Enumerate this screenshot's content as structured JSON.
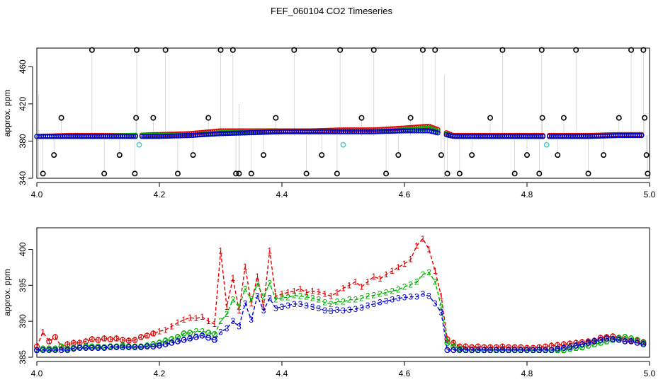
{
  "figure": {
    "title": "FEF_060104  CO2 Timeseries"
  },
  "colors": {
    "black": "#000000",
    "red": "#e00000",
    "green": "#00b000",
    "blue": "#0000cc",
    "cyan": "#33cccc",
    "gray": "#999999"
  },
  "chart_data": [
    {
      "type": "scatter",
      "ylabel": "approx. ppm",
      "xlim": [
        4.0,
        5.0
      ],
      "ylim": [
        340,
        480
      ],
      "xticks": [
        "4.0",
        "4.2",
        "4.4",
        "4.6",
        "4.8",
        "5.0"
      ],
      "yticks": [
        "340",
        "380",
        "420",
        "460"
      ],
      "xtick_values": [
        4.0,
        4.2,
        4.4,
        4.6,
        4.8,
        5.0
      ],
      "ytick_values": [
        340,
        380,
        420,
        460
      ],
      "grid": false,
      "series": [
        {
          "values": [
            [
              4.0,
              385
            ],
            [
              4.05,
              386
            ],
            [
              4.1,
              386
            ],
            [
              4.15,
              386
            ],
            [
              4.2,
              387
            ],
            [
              4.25,
              388
            ],
            [
              4.3,
              391
            ],
            [
              4.35,
              391
            ],
            [
              4.4,
              391
            ],
            [
              4.45,
              391
            ],
            [
              4.5,
              392
            ],
            [
              4.55,
              392
            ],
            [
              4.6,
              394
            ],
            [
              4.64,
              396
            ],
            [
              4.68,
              386
            ],
            [
              4.75,
              386
            ],
            [
              4.8,
              386
            ],
            [
              4.85,
              386
            ],
            [
              4.9,
              386
            ],
            [
              4.95,
              387
            ],
            [
              4.99,
              387
            ]
          ]
        },
        {
          "values": [
            [
              4.0,
              385
            ],
            [
              4.05,
              385
            ],
            [
              4.1,
              385
            ],
            [
              4.15,
              386
            ],
            [
              4.2,
              386
            ],
            [
              4.25,
              386
            ],
            [
              4.3,
              389
            ],
            [
              4.35,
              390
            ],
            [
              4.4,
              390
            ],
            [
              4.45,
              390
            ],
            [
              4.5,
              390
            ],
            [
              4.55,
              390
            ],
            [
              4.6,
              392
            ],
            [
              4.64,
              394
            ],
            [
              4.68,
              385
            ],
            [
              4.75,
              385
            ],
            [
              4.8,
              385
            ],
            [
              4.85,
              385
            ],
            [
              4.9,
              385
            ],
            [
              4.95,
              386
            ],
            [
              4.99,
              386
            ]
          ]
        },
        {
          "values": [
            [
              4.0,
              385
            ],
            [
              4.05,
              385
            ],
            [
              4.1,
              385
            ],
            [
              4.15,
              385
            ],
            [
              4.2,
              385
            ],
            [
              4.25,
              386
            ],
            [
              4.3,
              388
            ],
            [
              4.35,
              389
            ],
            [
              4.4,
              390
            ],
            [
              4.45,
              390
            ],
            [
              4.5,
              390
            ],
            [
              4.55,
              390
            ],
            [
              4.6,
              391
            ],
            [
              4.64,
              391
            ],
            [
              4.68,
              385
            ],
            [
              4.75,
              385
            ],
            [
              4.8,
              385
            ],
            [
              4.85,
              385
            ],
            [
              4.9,
              385
            ],
            [
              4.95,
              386
            ],
            [
              4.99,
              386
            ]
          ]
        },
        {
          "values": [
            [
              4.01,
              345
            ],
            [
              4.028,
              365
            ],
            [
              4.04,
              405
            ],
            [
              4.09,
              478
            ],
            [
              4.11,
              345
            ],
            [
              4.135,
              365
            ],
            [
              4.16,
              345
            ],
            [
              4.162,
              405
            ],
            [
              4.163,
              478
            ],
            [
              4.19,
              405
            ],
            [
              4.21,
              478
            ],
            [
              4.23,
              345
            ],
            [
              4.255,
              365
            ],
            [
              4.28,
              405
            ],
            [
              4.3,
              478
            ],
            [
              4.32,
              478
            ],
            [
              4.325,
              345
            ],
            [
              4.33,
              345
            ],
            [
              4.35,
              345
            ],
            [
              4.37,
              365
            ],
            [
              4.39,
              405
            ],
            [
              4.42,
              478
            ],
            [
              4.44,
              345
            ],
            [
              4.465,
              365
            ],
            [
              4.49,
              345
            ],
            [
              4.495,
              478
            ],
            [
              4.53,
              405
            ],
            [
              4.55,
              478
            ],
            [
              4.57,
              345
            ],
            [
              4.59,
              365
            ],
            [
              4.61,
              405
            ],
            [
              4.63,
              478
            ],
            [
              4.65,
              478
            ],
            [
              4.66,
              365
            ],
            [
              4.67,
              345
            ],
            [
              4.69,
              345
            ],
            [
              4.71,
              365
            ],
            [
              4.74,
              405
            ],
            [
              4.76,
              478
            ],
            [
              4.78,
              345
            ],
            [
              4.8,
              365
            ],
            [
              4.82,
              345
            ],
            [
              4.824,
              478
            ],
            [
              4.825,
              405
            ],
            [
              4.85,
              365
            ],
            [
              4.86,
              405
            ],
            [
              4.88,
              478
            ],
            [
              4.9,
              345
            ],
            [
              4.925,
              365
            ],
            [
              4.95,
              405
            ],
            [
              4.97,
              478
            ],
            [
              4.99,
              478
            ],
            [
              4.992,
              405
            ],
            [
              4.995,
              365
            ],
            [
              4.997,
              345
            ]
          ]
        },
        {
          "values": [
            [
              4.167,
              376
            ],
            [
              4.5,
              376
            ],
            [
              4.832,
              376
            ]
          ]
        }
      ]
    },
    {
      "type": "line",
      "ylabel": "approx. ppm",
      "xlim": [
        4.0,
        5.0
      ],
      "ylim": [
        385,
        403
      ],
      "xticks": [
        "4.0",
        "4.2",
        "4.4",
        "4.6",
        "4.8",
        "5.0"
      ],
      "yticks": [
        "385",
        "390",
        "395",
        "400"
      ],
      "xtick_values": [
        4.0,
        4.2,
        4.4,
        4.6,
        4.8,
        5.0
      ],
      "ytick_values": [
        385,
        390,
        395,
        400
      ],
      "grid": false,
      "x": [
        4.0,
        4.01,
        4.02,
        4.03,
        4.04,
        4.05,
        4.06,
        4.07,
        4.08,
        4.09,
        4.1,
        4.11,
        4.12,
        4.13,
        4.14,
        4.15,
        4.16,
        4.17,
        4.18,
        4.19,
        4.2,
        4.21,
        4.22,
        4.23,
        4.24,
        4.25,
        4.26,
        4.27,
        4.28,
        4.29,
        4.3,
        4.31,
        4.32,
        4.33,
        4.34,
        4.35,
        4.36,
        4.37,
        4.38,
        4.39,
        4.4,
        4.41,
        4.42,
        4.43,
        4.44,
        4.45,
        4.46,
        4.47,
        4.48,
        4.49,
        4.5,
        4.51,
        4.52,
        4.53,
        4.54,
        4.55,
        4.56,
        4.57,
        4.58,
        4.59,
        4.6,
        4.61,
        4.62,
        4.63,
        4.64,
        4.65,
        4.66,
        4.67,
        4.68,
        4.69,
        4.7,
        4.71,
        4.72,
        4.73,
        4.74,
        4.75,
        4.76,
        4.77,
        4.78,
        4.79,
        4.8,
        4.81,
        4.82,
        4.83,
        4.84,
        4.85,
        4.86,
        4.87,
        4.88,
        4.89,
        4.9,
        4.91,
        4.92,
        4.93,
        4.94,
        4.95,
        4.96,
        4.97,
        4.98,
        4.99
      ],
      "series": [
        {
          "label": "1",
          "values": [
            386.5,
            388.5,
            387.2,
            387.8,
            386.5,
            386.8,
            387,
            387,
            387.2,
            387.5,
            387.4,
            387.6,
            387.5,
            387.6,
            387.4,
            387.3,
            387.4,
            387.8,
            388,
            388.3,
            388.6,
            388.8,
            389.3,
            389.8,
            390.2,
            390.5,
            390.4,
            390.6,
            390,
            389.6,
            399.8,
            392,
            396,
            391.5,
            397.6,
            392.5,
            396.2,
            392,
            399.8,
            393.5,
            393.8,
            394,
            394.2,
            394.5,
            394,
            394.2,
            394.1,
            393.8,
            393.5,
            394,
            394.6,
            395,
            395.5,
            394.8,
            395.5,
            396.2,
            395.9,
            396.5,
            397,
            397.5,
            398,
            398.6,
            400.5,
            401.5,
            400,
            397,
            393.5,
            387.5,
            387,
            386.5,
            386.5,
            386.4,
            386.5,
            386.4,
            386.4,
            386.4,
            386.5,
            386.4,
            386.4,
            386.4,
            386.3,
            386.3,
            386.4,
            386.5,
            386.6,
            386.7,
            386.8,
            386.9,
            387,
            387.1,
            387.2,
            387.3,
            387.7,
            387.8,
            387.9,
            387.7,
            387.5,
            387.3,
            387.3,
            387.1
          ]
        },
        {
          "label": "2",
          "values": [
            386,
            386.2,
            386.2,
            386.2,
            386.5,
            386.2,
            386.3,
            386.4,
            386.5,
            386.5,
            386.5,
            386.4,
            386.5,
            386.5,
            386.6,
            386.5,
            386.5,
            386.5,
            386.6,
            386.8,
            387,
            387.3,
            387.5,
            387.8,
            388.3,
            388.4,
            388.6,
            388.6,
            388.4,
            388.2,
            390,
            391,
            393,
            392,
            394.5,
            393,
            395.2,
            393.4,
            395.3,
            393,
            393.3,
            393.3,
            393.6,
            393.5,
            393.4,
            393.2,
            393,
            392.6,
            392.4,
            392.7,
            392.7,
            393,
            393,
            393.2,
            393.5,
            393.6,
            393.8,
            394,
            394.2,
            394.4,
            394.8,
            395.1,
            395.5,
            396.5,
            396.8,
            395.5,
            392,
            387,
            386.5,
            386.2,
            386,
            386,
            386,
            386,
            386,
            386,
            386,
            386,
            386,
            386,
            386,
            386,
            386,
            386,
            386,
            386,
            386,
            386.2,
            386.3,
            386.4,
            386.6,
            386.8,
            387,
            387.2,
            387.4,
            387.6,
            387.8,
            387.6,
            387.4,
            387
          ]
        },
        {
          "label": "3",
          "values": [
            386,
            386,
            386,
            386,
            386,
            386,
            386.2,
            386.3,
            386.3,
            386.3,
            386.3,
            386.3,
            386.4,
            386.4,
            386.4,
            386.4,
            386.4,
            386.4,
            386.5,
            386.5,
            386.6,
            386.8,
            387,
            387.2,
            387.4,
            387.6,
            387.8,
            388,
            387.7,
            387.4,
            388.5,
            389,
            390,
            389.3,
            392.5,
            390.2,
            393.5,
            391.5,
            393.2,
            391.8,
            392,
            392.2,
            392.4,
            392.4,
            392.2,
            392,
            391.8,
            391.5,
            391.4,
            391.6,
            391.5,
            391.6,
            391.7,
            391.9,
            392.2,
            392.4,
            392.6,
            392.8,
            393,
            393.2,
            393.3,
            393.4,
            393.4,
            393.8,
            393.5,
            392.5,
            391.2,
            386,
            386,
            386,
            386,
            386,
            386,
            386,
            386,
            386,
            386,
            386,
            386,
            386,
            386,
            386,
            386,
            386,
            386,
            386.2,
            386.3,
            386.4,
            386.6,
            386.8,
            387,
            387.2,
            387.4,
            387.6,
            387.5,
            387.4,
            387.2,
            387.2,
            387,
            386.8
          ]
        }
      ]
    }
  ]
}
